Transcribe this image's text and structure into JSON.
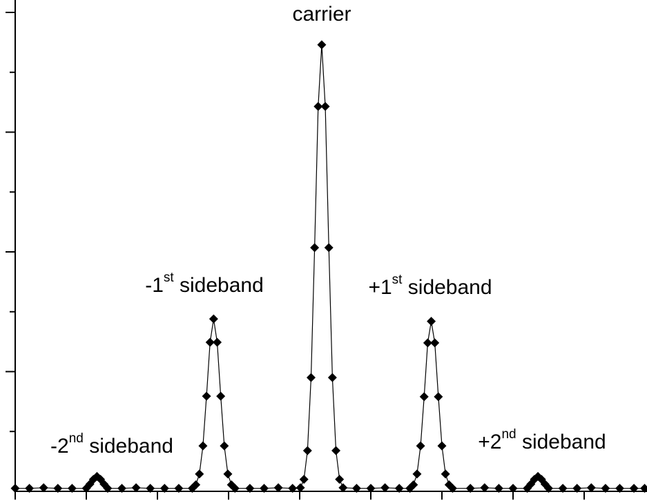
{
  "chart_data": {
    "type": "line",
    "color": "#000000",
    "marker": "diamond",
    "xlim": [
      0,
      8.88
    ],
    "xticks": [
      0,
      1,
      2,
      3,
      4,
      5,
      6,
      7,
      8
    ],
    "ylim": [
      0,
      8.2
    ],
    "yticks": [
      1,
      2,
      3,
      4,
      5,
      6,
      7,
      8
    ],
    "annotations": [
      {
        "text": "carrier"
      },
      {
        "text": "-1",
        "sup": "st",
        "rest": " sideband"
      },
      {
        "text": "+1",
        "sup": "st",
        "rest": " sideband"
      },
      {
        "text": "-2",
        "sup": "nd",
        "rest": " sideband"
      },
      {
        "text": "+2",
        "sup": "nd",
        "rest": " sideband"
      }
    ],
    "x": [
      0,
      0.2,
      0.4,
      0.6,
      0.8,
      1.0,
      1.05,
      1.1,
      1.15,
      1.2,
      1.25,
      1.3,
      1.5,
      1.7,
      1.9,
      2.1,
      2.3,
      2.49,
      2.54,
      2.59,
      2.64,
      2.69,
      2.74,
      2.79,
      2.84,
      2.89,
      2.94,
      2.99,
      3.04,
      3.09,
      3.3,
      3.5,
      3.7,
      3.9,
      4.01,
      4.06,
      4.11,
      4.16,
      4.21,
      4.26,
      4.31,
      4.36,
      4.41,
      4.46,
      4.51,
      4.56,
      4.61,
      4.8,
      5.0,
      5.2,
      5.4,
      5.55,
      5.6,
      5.65,
      5.7,
      5.75,
      5.8,
      5.85,
      5.9,
      5.95,
      6.0,
      6.05,
      6.1,
      6.15,
      6.4,
      6.6,
      6.8,
      7.0,
      7.2,
      7.25,
      7.3,
      7.35,
      7.4,
      7.45,
      7.5,
      7.7,
      7.9,
      8.1,
      8.3,
      8.5,
      8.7,
      8.85
    ],
    "values": [
      0.05,
      0.05,
      0.06,
      0.05,
      0.05,
      0.05,
      0.12,
      0.2,
      0.25,
      0.2,
      0.12,
      0.05,
      0.05,
      0.06,
      0.05,
      0.05,
      0.05,
      0.05,
      0.11,
      0.29,
      0.76,
      1.59,
      2.49,
      2.88,
      2.49,
      1.59,
      0.76,
      0.29,
      0.11,
      0.05,
      0.05,
      0.05,
      0.06,
      0.05,
      0.06,
      0.2,
      0.68,
      1.9,
      4.07,
      6.43,
      7.46,
      6.43,
      4.07,
      1.9,
      0.68,
      0.2,
      0.06,
      0.05,
      0.05,
      0.06,
      0.05,
      0.05,
      0.11,
      0.29,
      0.76,
      1.58,
      2.48,
      2.84,
      2.48,
      1.58,
      0.76,
      0.29,
      0.11,
      0.05,
      0.05,
      0.06,
      0.05,
      0.05,
      0.05,
      0.12,
      0.2,
      0.25,
      0.2,
      0.12,
      0.05,
      0.05,
      0.05,
      0.06,
      0.05,
      0.05,
      0.05,
      0.05
    ]
  }
}
